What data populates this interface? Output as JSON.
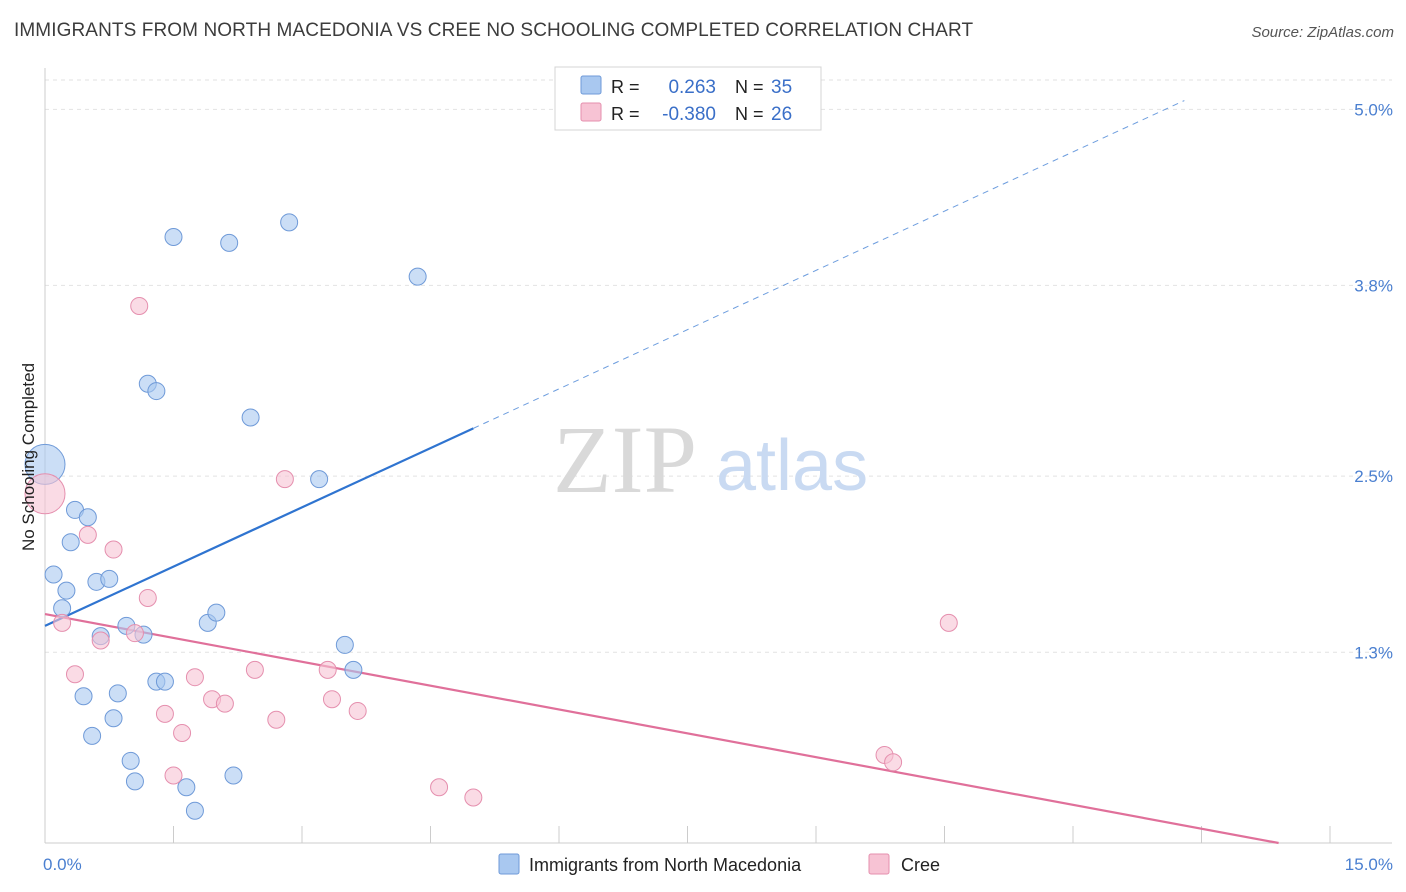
{
  "header": {
    "title": "IMMIGRANTS FROM NORTH MACEDONIA VS CREE NO SCHOOLING COMPLETED CORRELATION CHART",
    "source": "Source: ZipAtlas.com"
  },
  "watermark": {
    "zip": "ZIP",
    "atlas": "atlas"
  },
  "stats_legend": {
    "rows": [
      {
        "r_label": "R =",
        "r_value": "0.263",
        "n_label": "N =",
        "n_value": "35"
      },
      {
        "r_label": "R =",
        "r_value": "-0.380",
        "n_label": "N =",
        "n_value": "26"
      }
    ]
  },
  "chart_data": {
    "type": "scatter",
    "title": "IMMIGRANTS FROM NORTH MACEDONIA VS CREE NO SCHOOLING COMPLETED CORRELATION CHART",
    "xlabel": "",
    "ylabel": "No Schooling Completed",
    "xlim": [
      0,
      15
    ],
    "ylim": [
      0,
      5.2
    ],
    "x_tick_labels": [
      "0.0%",
      "15.0%"
    ],
    "y_ticks": [
      1.3,
      2.5,
      3.8,
      5.0
    ],
    "y_tick_labels": [
      "1.3%",
      "2.5%",
      "3.8%",
      "5.0%"
    ],
    "grid": true,
    "legend_position": "bottom-center",
    "series": [
      {
        "name": "Immigrants from North Macedonia",
        "color": "#a9c8f0",
        "stroke": "#6f9ad8",
        "line_color": "#2f74d0",
        "trend": {
          "x0": 0,
          "y0": 1.48,
          "x1": 13.3,
          "y1": 5.06,
          "solid_until_x": 5.0
        },
        "points": [
          [
            0.0,
            2.58
          ],
          [
            0.1,
            1.83
          ],
          [
            0.2,
            1.6
          ],
          [
            0.25,
            1.72
          ],
          [
            0.3,
            2.05
          ],
          [
            0.35,
            2.27
          ],
          [
            0.45,
            1.0
          ],
          [
            0.5,
            2.22
          ],
          [
            0.55,
            0.73
          ],
          [
            0.6,
            1.78
          ],
          [
            0.65,
            1.41
          ],
          [
            0.75,
            1.8
          ],
          [
            0.8,
            0.85
          ],
          [
            0.85,
            1.02
          ],
          [
            0.95,
            1.48
          ],
          [
            1.0,
            0.56
          ],
          [
            1.05,
            0.42
          ],
          [
            1.15,
            1.42
          ],
          [
            1.2,
            3.13
          ],
          [
            1.3,
            3.08
          ],
          [
            1.3,
            1.1
          ],
          [
            1.4,
            1.1
          ],
          [
            1.5,
            4.13
          ],
          [
            1.65,
            0.38
          ],
          [
            1.75,
            0.22
          ],
          [
            1.9,
            1.5
          ],
          [
            2.0,
            1.57
          ],
          [
            2.15,
            4.09
          ],
          [
            2.2,
            0.46
          ],
          [
            2.4,
            2.9
          ],
          [
            2.85,
            4.23
          ],
          [
            3.2,
            2.48
          ],
          [
            3.5,
            1.35
          ],
          [
            3.6,
            1.18
          ],
          [
            4.35,
            3.86
          ]
        ]
      },
      {
        "name": "Cree",
        "color": "#f7c3d4",
        "stroke": "#e58fae",
        "line_color": "#e0709a",
        "trend": {
          "x0": 0,
          "y0": 1.56,
          "x1": 14.4,
          "y1": 0.0
        },
        "points": [
          [
            0.0,
            2.38
          ],
          [
            0.2,
            1.5
          ],
          [
            0.35,
            1.15
          ],
          [
            0.5,
            2.1
          ],
          [
            0.65,
            1.38
          ],
          [
            0.8,
            2.0
          ],
          [
            1.05,
            1.43
          ],
          [
            1.1,
            3.66
          ],
          [
            1.2,
            1.67
          ],
          [
            1.4,
            0.88
          ],
          [
            1.5,
            0.46
          ],
          [
            1.6,
            0.75
          ],
          [
            1.75,
            1.13
          ],
          [
            1.95,
            0.98
          ],
          [
            2.1,
            0.95
          ],
          [
            2.45,
            1.18
          ],
          [
            2.7,
            0.84
          ],
          [
            2.8,
            2.48
          ],
          [
            3.3,
            1.18
          ],
          [
            3.35,
            0.98
          ],
          [
            3.65,
            0.9
          ],
          [
            4.6,
            0.38
          ],
          [
            5.0,
            0.31
          ],
          [
            9.8,
            0.6
          ],
          [
            9.9,
            0.55
          ],
          [
            10.55,
            1.5
          ]
        ]
      }
    ]
  }
}
